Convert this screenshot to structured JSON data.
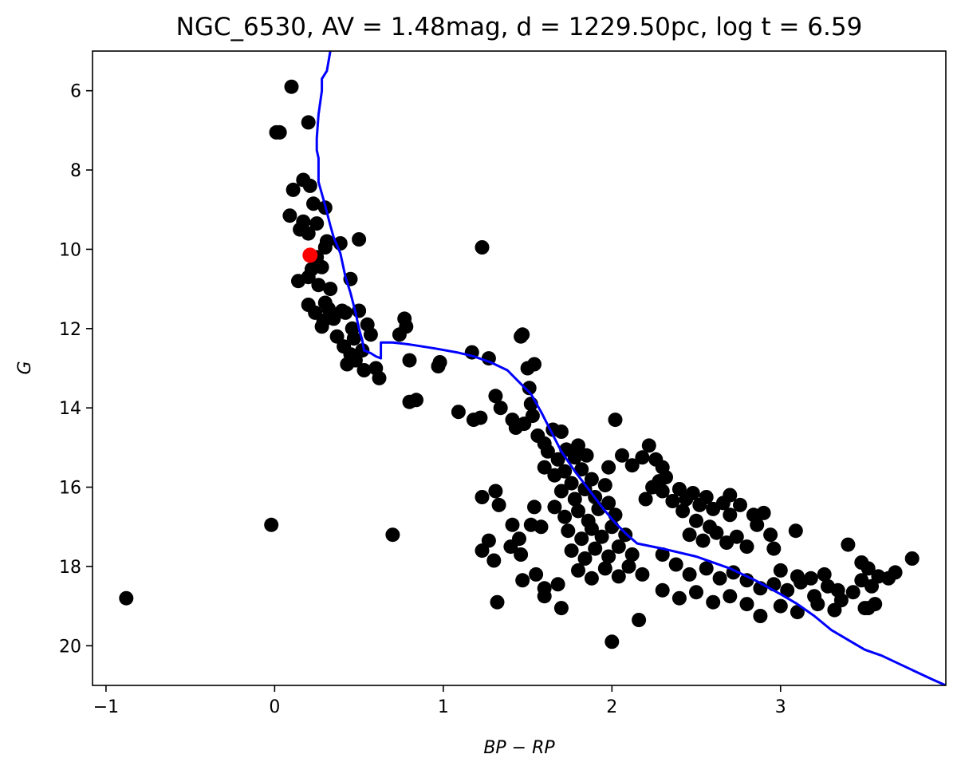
{
  "chart_data": {
    "type": "scatter",
    "title": "NGC_6530, AV = 1.48mag, d = 1229.50pc, log t = 6.59",
    "xlabel": "BP − RP",
    "ylabel": "G",
    "xlim": [
      -1.08,
      3.98
    ],
    "ylim": [
      21.0,
      5.0
    ],
    "y_inverted": true,
    "x_ticks": [
      -1,
      0,
      1,
      2,
      3
    ],
    "y_ticks": [
      6,
      8,
      10,
      12,
      14,
      16,
      18,
      20
    ],
    "x_tick_labels": [
      "−1",
      "0",
      "1",
      "2",
      "3"
    ],
    "y_tick_labels": [
      "6",
      "8",
      "10",
      "12",
      "14",
      "16",
      "18",
      "20"
    ],
    "grid": false,
    "colors": {
      "stars": "#000000",
      "highlight": "#ff0000",
      "isochrone": "#0000ff"
    },
    "series": [
      {
        "kind": "points",
        "points": [
          [
            0.1,
            5.9
          ],
          [
            0.2,
            6.8
          ],
          [
            0.01,
            7.05
          ],
          [
            0.03,
            7.05
          ],
          [
            0.17,
            8.25
          ],
          [
            0.21,
            8.4
          ],
          [
            0.11,
            8.5
          ],
          [
            0.23,
            8.85
          ],
          [
            0.3,
            8.95
          ],
          [
            0.09,
            9.15
          ],
          [
            0.17,
            9.3
          ],
          [
            0.25,
            9.35
          ],
          [
            0.15,
            9.5
          ],
          [
            0.2,
            9.6
          ],
          [
            0.31,
            9.8
          ],
          [
            0.3,
            9.95
          ],
          [
            0.5,
            9.75
          ],
          [
            0.39,
            9.85
          ],
          [
            0.25,
            10.2
          ],
          [
            0.22,
            10.5
          ],
          [
            0.28,
            10.45
          ],
          [
            0.14,
            10.8
          ],
          [
            0.2,
            10.7
          ],
          [
            0.45,
            10.75
          ],
          [
            0.26,
            10.9
          ],
          [
            0.33,
            11.0
          ],
          [
            0.2,
            11.4
          ],
          [
            0.3,
            11.35
          ],
          [
            0.24,
            11.6
          ],
          [
            0.32,
            11.5
          ],
          [
            0.4,
            11.55
          ],
          [
            0.29,
            11.8
          ],
          [
            0.35,
            11.75
          ],
          [
            0.42,
            11.6
          ],
          [
            0.5,
            11.55
          ],
          [
            0.28,
            11.95
          ],
          [
            0.46,
            12.0
          ],
          [
            0.37,
            12.2
          ],
          [
            0.47,
            12.25
          ],
          [
            0.55,
            11.9
          ],
          [
            0.57,
            12.15
          ],
          [
            0.41,
            12.45
          ],
          [
            0.45,
            12.65
          ],
          [
            0.52,
            12.55
          ],
          [
            0.43,
            12.9
          ],
          [
            0.48,
            12.8
          ],
          [
            0.53,
            13.05
          ],
          [
            0.6,
            13.0
          ],
          [
            0.62,
            13.25
          ],
          [
            0.77,
            11.75
          ],
          [
            0.78,
            11.95
          ],
          [
            0.74,
            12.15
          ],
          [
            0.8,
            12.8
          ],
          [
            0.8,
            13.85
          ],
          [
            0.84,
            13.8
          ],
          [
            0.97,
            12.95
          ],
          [
            0.98,
            12.85
          ],
          [
            1.23,
            9.95
          ],
          [
            1.17,
            12.6
          ],
          [
            1.27,
            12.75
          ],
          [
            1.09,
            14.1
          ],
          [
            1.18,
            14.3
          ],
          [
            1.22,
            14.25
          ],
          [
            1.31,
            13.7
          ],
          [
            1.34,
            14.0
          ],
          [
            1.41,
            14.3
          ],
          [
            1.46,
            12.2
          ],
          [
            1.47,
            12.15
          ],
          [
            1.5,
            13.0
          ],
          [
            1.54,
            12.9
          ],
          [
            1.51,
            13.5
          ],
          [
            1.52,
            13.9
          ],
          [
            1.43,
            14.5
          ],
          [
            1.48,
            14.4
          ],
          [
            1.53,
            14.2
          ],
          [
            -0.02,
            16.95
          ],
          [
            0.7,
            17.2
          ],
          [
            -0.88,
            18.8
          ],
          [
            1.23,
            16.25
          ],
          [
            1.33,
            16.45
          ],
          [
            1.31,
            16.1
          ],
          [
            1.27,
            17.35
          ],
          [
            1.23,
            17.6
          ],
          [
            1.3,
            17.85
          ],
          [
            1.32,
            18.9
          ],
          [
            1.41,
            16.95
          ],
          [
            1.45,
            17.3
          ],
          [
            1.4,
            17.5
          ],
          [
            1.46,
            17.7
          ],
          [
            1.47,
            18.35
          ],
          [
            1.55,
            18.2
          ],
          [
            1.6,
            18.55
          ],
          [
            1.6,
            18.75
          ],
          [
            1.68,
            18.45
          ],
          [
            1.7,
            19.05
          ],
          [
            1.58,
            17.0
          ],
          [
            1.54,
            16.5
          ],
          [
            1.52,
            16.95
          ],
          [
            1.56,
            14.7
          ],
          [
            1.6,
            14.9
          ],
          [
            1.65,
            14.55
          ],
          [
            1.7,
            14.6
          ],
          [
            1.62,
            15.1
          ],
          [
            1.68,
            15.3
          ],
          [
            1.73,
            15.05
          ],
          [
            1.78,
            15.25
          ],
          [
            1.8,
            14.95
          ],
          [
            1.85,
            15.2
          ],
          [
            1.6,
            15.5
          ],
          [
            1.66,
            15.7
          ],
          [
            1.72,
            15.6
          ],
          [
            1.76,
            15.9
          ],
          [
            1.82,
            15.55
          ],
          [
            1.88,
            15.8
          ],
          [
            1.7,
            16.1
          ],
          [
            1.78,
            16.3
          ],
          [
            1.84,
            16.05
          ],
          [
            1.9,
            16.25
          ],
          [
            1.96,
            15.95
          ],
          [
            1.98,
            16.4
          ],
          [
            1.66,
            16.5
          ],
          [
            1.72,
            16.75
          ],
          [
            1.8,
            16.6
          ],
          [
            1.86,
            16.85
          ],
          [
            1.92,
            16.55
          ],
          [
            2.02,
            16.7
          ],
          [
            1.74,
            17.1
          ],
          [
            1.82,
            17.3
          ],
          [
            1.88,
            17.05
          ],
          [
            1.94,
            17.25
          ],
          [
            2.0,
            17.0
          ],
          [
            2.08,
            17.2
          ],
          [
            1.76,
            17.6
          ],
          [
            1.84,
            17.8
          ],
          [
            1.9,
            17.55
          ],
          [
            1.98,
            17.75
          ],
          [
            2.04,
            17.5
          ],
          [
            2.12,
            17.7
          ],
          [
            1.8,
            18.1
          ],
          [
            1.88,
            18.3
          ],
          [
            1.96,
            18.05
          ],
          [
            2.04,
            18.25
          ],
          [
            2.1,
            18.0
          ],
          [
            2.18,
            18.2
          ],
          [
            2.0,
            19.9
          ],
          [
            2.16,
            19.35
          ],
          [
            2.02,
            14.3
          ],
          [
            1.98,
            15.5
          ],
          [
            2.06,
            15.2
          ],
          [
            2.12,
            15.45
          ],
          [
            2.18,
            15.25
          ],
          [
            2.22,
            14.95
          ],
          [
            2.26,
            15.3
          ],
          [
            2.3,
            15.5
          ],
          [
            2.28,
            15.85
          ],
          [
            2.32,
            15.75
          ],
          [
            2.24,
            16.0
          ],
          [
            2.2,
            16.3
          ],
          [
            2.3,
            16.1
          ],
          [
            2.36,
            16.35
          ],
          [
            2.4,
            16.05
          ],
          [
            2.44,
            16.3
          ],
          [
            2.48,
            16.15
          ],
          [
            2.52,
            16.45
          ],
          [
            2.56,
            16.25
          ],
          [
            2.6,
            16.55
          ],
          [
            2.66,
            16.4
          ],
          [
            2.7,
            16.7
          ],
          [
            2.42,
            16.6
          ],
          [
            2.5,
            16.85
          ],
          [
            2.58,
            17.0
          ],
          [
            2.46,
            17.2
          ],
          [
            2.54,
            17.35
          ],
          [
            2.62,
            17.15
          ],
          [
            2.68,
            17.4
          ],
          [
            2.74,
            17.25
          ],
          [
            2.8,
            17.5
          ],
          [
            2.86,
            16.95
          ],
          [
            2.9,
            16.65
          ],
          [
            2.7,
            16.2
          ],
          [
            2.76,
            16.45
          ],
          [
            2.84,
            16.7
          ],
          [
            2.94,
            17.2
          ],
          [
            2.96,
            17.55
          ],
          [
            2.3,
            17.7
          ],
          [
            2.38,
            17.95
          ],
          [
            2.46,
            18.2
          ],
          [
            2.56,
            18.05
          ],
          [
            2.64,
            18.3
          ],
          [
            2.72,
            18.15
          ],
          [
            2.8,
            18.35
          ],
          [
            2.88,
            18.55
          ],
          [
            2.96,
            18.45
          ],
          [
            3.04,
            18.6
          ],
          [
            3.12,
            18.4
          ],
          [
            3.2,
            18.75
          ],
          [
            3.28,
            18.5
          ],
          [
            3.36,
            18.85
          ],
          [
            2.3,
            18.6
          ],
          [
            2.4,
            18.8
          ],
          [
            2.5,
            18.65
          ],
          [
            2.6,
            18.9
          ],
          [
            2.7,
            18.75
          ],
          [
            2.8,
            18.95
          ],
          [
            2.88,
            19.25
          ],
          [
            3.0,
            19.0
          ],
          [
            3.1,
            19.15
          ],
          [
            3.22,
            18.95
          ],
          [
            3.32,
            19.1
          ],
          [
            3.09,
            17.1
          ],
          [
            3.0,
            18.1
          ],
          [
            3.1,
            18.25
          ],
          [
            3.18,
            18.3
          ],
          [
            3.26,
            18.2
          ],
          [
            3.34,
            18.6
          ],
          [
            3.43,
            18.65
          ],
          [
            3.4,
            17.45
          ],
          [
            3.48,
            17.9
          ],
          [
            3.52,
            18.05
          ],
          [
            3.48,
            18.35
          ],
          [
            3.54,
            18.5
          ],
          [
            3.56,
            18.95
          ],
          [
            3.52,
            19.05
          ],
          [
            3.58,
            18.25
          ],
          [
            3.68,
            18.15
          ],
          [
            3.64,
            18.3
          ],
          [
            3.78,
            17.8
          ],
          [
            3.5,
            19.05
          ]
        ]
      },
      {
        "kind": "highlight",
        "points": [
          [
            0.21,
            10.15
          ]
        ]
      },
      {
        "kind": "isochrone",
        "points": [
          [
            0.33,
            5.0
          ],
          [
            0.31,
            5.5
          ],
          [
            0.28,
            5.7
          ],
          [
            0.28,
            6.0
          ],
          [
            0.26,
            6.6
          ],
          [
            0.25,
            7.2
          ],
          [
            0.25,
            7.5
          ],
          [
            0.26,
            7.7
          ],
          [
            0.26,
            8.3
          ],
          [
            0.28,
            8.6
          ],
          [
            0.3,
            8.9
          ],
          [
            0.33,
            9.4
          ],
          [
            0.35,
            9.7
          ],
          [
            0.39,
            10.1
          ],
          [
            0.42,
            10.7
          ],
          [
            0.45,
            11.1
          ],
          [
            0.48,
            11.6
          ],
          [
            0.5,
            12.0
          ],
          [
            0.52,
            12.3
          ],
          [
            0.53,
            12.55
          ],
          [
            0.57,
            12.62
          ],
          [
            0.6,
            12.7
          ],
          [
            0.63,
            12.75
          ],
          [
            0.63,
            12.35
          ],
          [
            0.7,
            12.35
          ],
          [
            0.8,
            12.4
          ],
          [
            0.95,
            12.5
          ],
          [
            1.08,
            12.6
          ],
          [
            1.18,
            12.7
          ],
          [
            1.28,
            12.85
          ],
          [
            1.38,
            13.05
          ],
          [
            1.45,
            13.35
          ],
          [
            1.52,
            13.65
          ],
          [
            1.58,
            14.1
          ],
          [
            1.64,
            14.6
          ],
          [
            1.7,
            15.1
          ],
          [
            1.78,
            15.6
          ],
          [
            1.87,
            16.1
          ],
          [
            1.95,
            16.55
          ],
          [
            2.02,
            16.9
          ],
          [
            2.09,
            17.2
          ],
          [
            2.15,
            17.42
          ],
          [
            2.3,
            17.55
          ],
          [
            2.5,
            17.75
          ],
          [
            2.7,
            18.05
          ],
          [
            2.85,
            18.35
          ],
          [
            3.0,
            18.7
          ],
          [
            3.1,
            18.95
          ],
          [
            3.2,
            19.25
          ],
          [
            3.3,
            19.6
          ],
          [
            3.4,
            19.85
          ],
          [
            3.5,
            20.1
          ],
          [
            3.6,
            20.25
          ],
          [
            3.7,
            20.45
          ],
          [
            3.8,
            20.65
          ],
          [
            3.9,
            20.85
          ],
          [
            3.98,
            21.0
          ]
        ]
      }
    ]
  }
}
